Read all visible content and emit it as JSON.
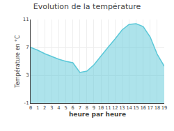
{
  "chart_data": {
    "type": "area",
    "title": "Evolution de la température",
    "xlabel": "heure par heure",
    "ylabel": "Température en °C",
    "x": [
      0,
      1,
      2,
      3,
      4,
      5,
      6,
      7,
      8,
      9,
      10,
      11,
      12,
      13,
      14,
      15,
      16,
      17,
      18,
      19
    ],
    "values": [
      7.0,
      6.6,
      6.1,
      5.7,
      5.3,
      5.0,
      4.8,
      3.4,
      3.6,
      4.5,
      5.8,
      7.0,
      8.2,
      9.5,
      10.3,
      10.4,
      10.0,
      8.5,
      6.0,
      4.3
    ],
    "color": "#5bc8d8",
    "xlim": [
      0,
      19
    ],
    "xticks": [
      0,
      1,
      2,
      3,
      4,
      5,
      6,
      7,
      8,
      9,
      10,
      11,
      12,
      13,
      14,
      15,
      16,
      17,
      18,
      19
    ],
    "ylim": [
      -1,
      11
    ],
    "yticks": [
      -1,
      3,
      7,
      11
    ],
    "grid": true
  }
}
